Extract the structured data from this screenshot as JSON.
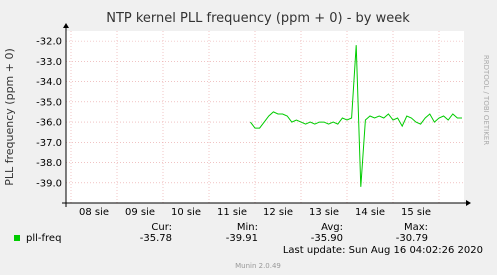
{
  "chart_data": {
    "type": "line",
    "title": "NTP kernel PLL frequency (ppm + 0) - by week",
    "y_label": "PLL frequency (ppm + 0)",
    "xtick_labels": [
      "08 sie",
      "09 sie",
      "10 sie",
      "11 sie",
      "12 sie",
      "13 sie",
      "14 sie",
      "15 sie"
    ],
    "ylim": [
      -40,
      -31.5
    ],
    "yticks": [
      {
        "value": -32,
        "label": "-32.0"
      },
      {
        "value": -33,
        "label": "-33.0"
      },
      {
        "value": -34,
        "label": "-34.0"
      },
      {
        "value": -35,
        "label": "-35.0"
      },
      {
        "value": -36,
        "label": "-36.0"
      },
      {
        "value": -37,
        "label": "-37.0"
      },
      {
        "value": -38,
        "label": "-38.0"
      },
      {
        "value": -39,
        "label": "-39.0"
      }
    ],
    "grid": true,
    "series": [
      {
        "name": "pll-freq",
        "color": "#00cc00",
        "values": [
          null,
          null,
          null,
          null,
          null,
          null,
          null,
          null,
          null,
          null,
          null,
          null,
          null,
          null,
          null,
          null,
          null,
          null,
          null,
          null,
          null,
          null,
          null,
          null,
          null,
          null,
          null,
          null,
          null,
          null,
          null,
          null,
          null,
          null,
          null,
          null,
          null,
          null,
          null,
          -36.0,
          -36.3,
          -36.3,
          -36.0,
          -35.7,
          -35.5,
          -35.6,
          -35.6,
          -35.7,
          -36.0,
          -35.9,
          -36.0,
          -36.1,
          -36.0,
          -36.1,
          -36.0,
          -36.0,
          -36.1,
          -36.0,
          -36.1,
          -35.8,
          -35.9,
          -35.8,
          -32.2,
          -39.2,
          -35.9,
          -35.7,
          -35.8,
          -35.7,
          -35.8,
          -35.6,
          -35.9,
          -35.8,
          -36.2,
          -35.7,
          -35.8,
          -36.0,
          -36.1,
          -35.8,
          -35.6,
          -36.0,
          -35.8,
          -35.7,
          -35.9,
          -35.6,
          -35.8,
          -35.8
        ]
      }
    ],
    "stats": [
      {
        "header": "Cur:",
        "value": -35.78,
        "label": "-35.78"
      },
      {
        "header": "Min:",
        "value": -39.91,
        "label": "-39.91"
      },
      {
        "header": "Avg:",
        "value": -35.9,
        "label": "-35.90"
      },
      {
        "header": "Max:",
        "value": -30.79,
        "label": "-30.79"
      }
    ],
    "last_update": "Last update: Sun Aug 16 04:02:26 2020",
    "watermark": "RRDTOOL / TOBI OETIKER",
    "footer": "Munin 2.0.49"
  }
}
